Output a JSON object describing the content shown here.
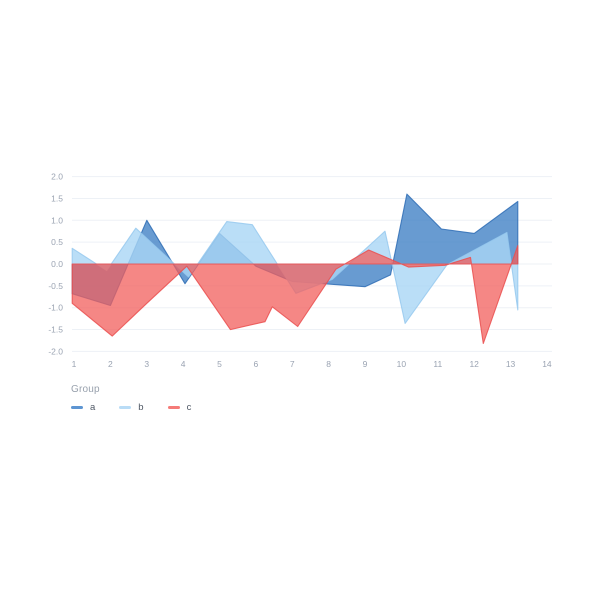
{
  "chart": {
    "legend": {
      "title": "Group",
      "items": [
        {
          "label": "a"
        },
        {
          "label": "b"
        },
        {
          "label": "c"
        }
      ]
    },
    "chart_data": {
      "type": "area",
      "title": "",
      "xlabel": "",
      "ylabel": "",
      "grid": "horizontal-only",
      "legend_position": "bottom-left",
      "background": "#ffffff",
      "gridline_color": "#edf1f6",
      "axis_label_color": "#9aa3b2",
      "xlim": [
        0.6,
        14.3
      ],
      "ylim": [
        -2.25,
        2.25
      ],
      "x_tick_values": [
        1,
        2,
        3,
        4,
        5,
        6,
        7,
        8,
        9,
        10,
        11,
        12,
        13,
        14
      ],
      "x_tick_labels": [
        "1",
        "2",
        "3",
        "4",
        "5",
        "6",
        "7",
        "8",
        "9",
        "10",
        "11",
        "12",
        "13",
        "14"
      ],
      "y_tick_values": [
        2.0,
        1.5,
        1.0,
        0.5,
        0.0,
        -0.5,
        -1.0,
        -1.5,
        -2.0
      ],
      "y_tick_labels": [
        "2.0",
        "1.5",
        "1.0",
        "0.5",
        "0.0",
        "-0.5",
        "-1.0",
        "-1.5",
        "-2.0"
      ],
      "baseline": 0,
      "series": [
        {
          "name": "a",
          "fill_color": "#3d7fc4",
          "line_color": "#2f6db5",
          "legend_color": "#5d95d2",
          "fill_opacity": 0.78,
          "points": [
            [
              0.95,
              -0.68
            ],
            [
              2.0,
              -0.95
            ],
            [
              3.0,
              1.0
            ],
            [
              4.05,
              -0.45
            ],
            [
              5.0,
              0.7
            ],
            [
              6.0,
              -0.05
            ],
            [
              7.0,
              -0.4
            ],
            [
              9.0,
              -0.52
            ],
            [
              9.7,
              -0.25
            ],
            [
              10.15,
              1.6
            ],
            [
              11.1,
              0.8
            ],
            [
              12.0,
              0.7
            ],
            [
              13.2,
              1.43
            ]
          ]
        },
        {
          "name": "b",
          "fill_color": "#a9d6f5",
          "line_color": "#96c9ef",
          "legend_color": "#b9dcf6",
          "fill_opacity": 0.8,
          "points": [
            [
              0.95,
              0.36
            ],
            [
              1.9,
              -0.15
            ],
            [
              2.7,
              0.82
            ],
            [
              4.15,
              -0.3
            ],
            [
              5.2,
              0.97
            ],
            [
              5.9,
              0.9
            ],
            [
              7.1,
              -0.67
            ],
            [
              8.1,
              -0.35
            ],
            [
              9.55,
              0.75
            ],
            [
              10.1,
              -1.36
            ],
            [
              11.25,
              -0.02
            ],
            [
              12.9,
              0.72
            ],
            [
              13.2,
              -1.05
            ]
          ]
        },
        {
          "name": "c",
          "fill_color": "#f15f5c",
          "line_color": "#ea4f4f",
          "legend_color": "#f57b78",
          "fill_opacity": 0.75,
          "points": [
            [
              0.95,
              -0.9
            ],
            [
              2.05,
              -1.65
            ],
            [
              3.0,
              -0.9
            ],
            [
              4.1,
              -0.05
            ],
            [
              5.3,
              -1.5
            ],
            [
              6.25,
              -1.32
            ],
            [
              6.45,
              -0.98
            ],
            [
              7.15,
              -1.43
            ],
            [
              8.2,
              -0.12
            ],
            [
              9.1,
              0.32
            ],
            [
              10.2,
              -0.07
            ],
            [
              11.2,
              -0.03
            ],
            [
              11.9,
              0.15
            ],
            [
              12.25,
              -1.82
            ],
            [
              13.2,
              0.42
            ]
          ]
        }
      ]
    }
  }
}
